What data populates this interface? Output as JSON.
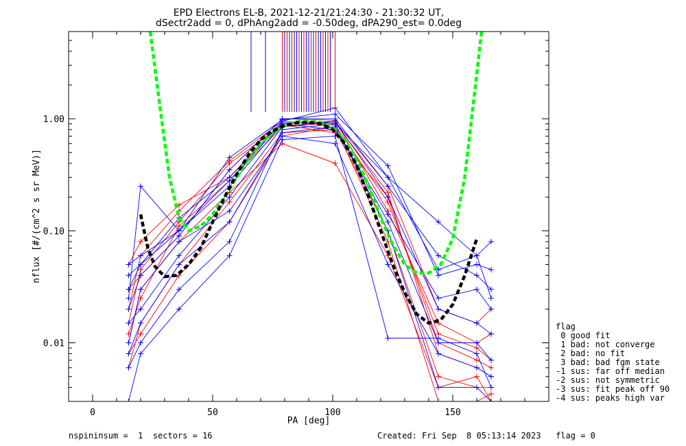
{
  "chart_data": {
    "type": "line",
    "title": "EPD Electrons EL-B, 2021-12-21/21:24:30 - 21:30:32 UT,",
    "subtitle": "dSectr2add = 0, dPhAng2add = -0.50deg, dPA290_est=   0.0deg",
    "xlabel": "PA [deg]",
    "ylabel": "nflux [#/(cm^2 s sr MeV)]",
    "xlim": [
      -10,
      190
    ],
    "ylim": [
      0.003,
      6.0
    ],
    "yscale": "log",
    "xticks": [
      0,
      50,
      100,
      150
    ],
    "xtick_labels": [
      "0",
      "50",
      "100",
      "150"
    ],
    "yticks": [
      1.0,
      0.1,
      0.01
    ],
    "ytick_labels": [
      "1.00",
      "0.10",
      "0.01"
    ],
    "grid": false,
    "sample_pa": [
      15,
      20,
      36,
      57,
      79,
      101,
      123,
      144,
      160,
      166
    ],
    "series_red": [
      {
        "values": [
          0.012,
          0.025,
          0.11,
          0.28,
          0.85,
          0.92,
          0.22,
          0.008,
          0.006,
          0.005
        ]
      },
      {
        "values": [
          0.02,
          0.06,
          0.15,
          0.42,
          0.95,
          0.88,
          0.18,
          0.012,
          0.009,
          0.007
        ]
      },
      {
        "values": [
          0.006,
          0.015,
          0.05,
          0.18,
          0.75,
          0.8,
          0.1,
          0.005,
          0.004,
          0.004
        ]
      },
      {
        "values": [
          0.05,
          0.08,
          0.17,
          0.3,
          0.9,
          0.95,
          0.25,
          0.02,
          0.015,
          0.02
        ]
      },
      {
        "values": [
          0.01,
          0.03,
          0.08,
          0.22,
          0.6,
          0.4,
          0.06,
          0.004,
          0.005,
          0.003
        ]
      },
      {
        "values": [
          0.03,
          0.04,
          0.09,
          0.35,
          1.0,
          0.97,
          0.15,
          0.015,
          0.01,
          0.012
        ]
      },
      {
        "values": [
          0.008,
          0.012,
          0.04,
          0.12,
          0.7,
          0.85,
          0.08,
          0.003,
          0.003,
          0.0035
        ]
      },
      {
        "values": [
          0.015,
          0.045,
          0.12,
          0.4,
          0.88,
          0.75,
          0.2,
          0.01,
          0.007,
          0.006
        ]
      }
    ],
    "series_blue": [
      {
        "values": [
          0.025,
          0.25,
          0.1,
          0.45,
          0.98,
          1.1,
          0.38,
          0.04,
          0.05,
          0.045
        ]
      },
      {
        "values": [
          0.04,
          0.05,
          0.13,
          0.3,
          0.95,
          1.25,
          0.3,
          0.12,
          0.06,
          0.08
        ]
      },
      {
        "values": [
          0.006,
          0.01,
          0.03,
          0.08,
          0.8,
          0.9,
          0.1,
          0.004,
          0.004,
          0.003
        ]
      },
      {
        "values": [
          0.015,
          0.02,
          0.06,
          0.2,
          0.85,
          0.95,
          0.2,
          0.02,
          0.015,
          0.012
        ]
      },
      {
        "values": [
          0.05,
          0.06,
          0.1,
          0.25,
          0.9,
          0.8,
          0.14,
          0.025,
          0.03,
          0.02
        ]
      },
      {
        "values": [
          0.01,
          0.03,
          0.08,
          0.15,
          0.7,
          0.6,
          0.05,
          0.008,
          0.006,
          0.005
        ]
      },
      {
        "values": [
          0.003,
          0.008,
          0.02,
          0.06,
          0.65,
          0.7,
          0.011,
          0.011,
          0.008,
          0.004
        ]
      },
      {
        "values": [
          0.02,
          0.04,
          0.09,
          0.35,
          1.0,
          1.0,
          0.25,
          0.06,
          0.04,
          0.03
        ]
      },
      {
        "values": [
          0.008,
          0.015,
          0.05,
          0.12,
          0.75,
          0.85,
          0.12,
          0.01,
          0.01,
          0.007
        ]
      },
      {
        "values": [
          0.03,
          0.05,
          0.1,
          0.28,
          0.92,
          0.92,
          0.3,
          0.045,
          0.06,
          0.025
        ]
      }
    ],
    "fit_green": {
      "x": [
        24,
        28,
        32,
        36,
        40,
        45,
        50,
        55,
        60,
        65,
        70,
        75,
        80,
        85,
        90,
        95,
        100,
        105,
        110,
        115,
        120,
        125,
        130,
        135,
        140,
        145,
        150,
        155,
        160,
        162
      ],
      "y": [
        6.0,
        1.3,
        0.3,
        0.13,
        0.1,
        0.11,
        0.14,
        0.2,
        0.3,
        0.44,
        0.6,
        0.75,
        0.87,
        0.94,
        0.96,
        0.93,
        0.84,
        0.65,
        0.43,
        0.25,
        0.13,
        0.075,
        0.05,
        0.042,
        0.042,
        0.05,
        0.085,
        0.3,
        2.5,
        6.0
      ]
    },
    "fit_black": {
      "x": [
        20,
        23,
        26,
        30,
        35,
        40,
        45,
        50,
        55,
        60,
        65,
        70,
        75,
        80,
        85,
        90,
        95,
        100,
        105,
        110,
        115,
        120,
        125,
        130,
        135,
        140,
        145,
        150,
        155,
        160
      ],
      "y": [
        0.14,
        0.07,
        0.048,
        0.039,
        0.04,
        0.05,
        0.07,
        0.12,
        0.2,
        0.32,
        0.48,
        0.65,
        0.78,
        0.87,
        0.92,
        0.93,
        0.9,
        0.8,
        0.6,
        0.38,
        0.2,
        0.1,
        0.05,
        0.028,
        0.018,
        0.015,
        0.016,
        0.022,
        0.04,
        0.085
      ]
    },
    "peak_markers": [
      {
        "x": 66,
        "y0": 1.15,
        "color": "#0000ff"
      },
      {
        "x": 72,
        "y0": 1.15,
        "color": "#0000ff"
      },
      {
        "x": 79,
        "y0": 1.15,
        "color": "#ff0000"
      },
      {
        "x": 80,
        "y0": 1.15,
        "color": "#0000ff"
      },
      {
        "x": 81,
        "y0": 1.15,
        "color": "#ff0000"
      },
      {
        "x": 82,
        "y0": 1.15,
        "color": "#0000ff"
      },
      {
        "x": 83,
        "y0": 1.15,
        "color": "#ff0000"
      },
      {
        "x": 84,
        "y0": 1.15,
        "color": "#0000ff"
      },
      {
        "x": 85,
        "y0": 1.15,
        "color": "#0000ff"
      },
      {
        "x": 86,
        "y0": 1.15,
        "color": "#ff0000"
      },
      {
        "x": 87,
        "y0": 1.15,
        "color": "#0000ff"
      },
      {
        "x": 88,
        "y0": 1.15,
        "color": "#ff0000"
      },
      {
        "x": 89,
        "y0": 1.15,
        "color": "#0000ff"
      },
      {
        "x": 90,
        "y0": 1.15,
        "color": "#0000ff"
      },
      {
        "x": 91,
        "y0": 1.15,
        "color": "#ff0000"
      },
      {
        "x": 92,
        "y0": 1.15,
        "color": "#0000ff"
      },
      {
        "x": 93,
        "y0": 1.15,
        "color": "#ff0000"
      },
      {
        "x": 94,
        "y0": 1.15,
        "color": "#0000ff"
      },
      {
        "x": 95,
        "y0": 1.15,
        "color": "#0000ff"
      },
      {
        "x": 96,
        "y0": 1.15,
        "color": "#ff0000"
      },
      {
        "x": 97,
        "y0": 1.15,
        "color": "#0000ff"
      },
      {
        "x": 98,
        "y0": 1.15,
        "color": "#ff0000"
      },
      {
        "x": 99,
        "y0": 1.15,
        "color": "#0000ff"
      },
      {
        "x": 101,
        "y0": 1.15,
        "color": "#ff0000"
      }
    ],
    "colors": {
      "red": "#ff0000",
      "blue": "#0000ff",
      "green": "#00ff00",
      "black": "#000000"
    }
  },
  "legend": {
    "title": "flag",
    "items": [
      " 0 good fit",
      " 1 bad: not converge",
      " 2 bad: no fit",
      " 3 bad: bad fgm state",
      "-1 sus: far off median",
      "-2 sus: not symmetric",
      "-3 sus: fit peak off 90",
      "-4 sus: peaks high var"
    ]
  },
  "footer": {
    "left": "nspininsum =  1  sectors = 16",
    "right": "Created: Fri Sep  8 05:13:14 2023   flag = 0"
  }
}
